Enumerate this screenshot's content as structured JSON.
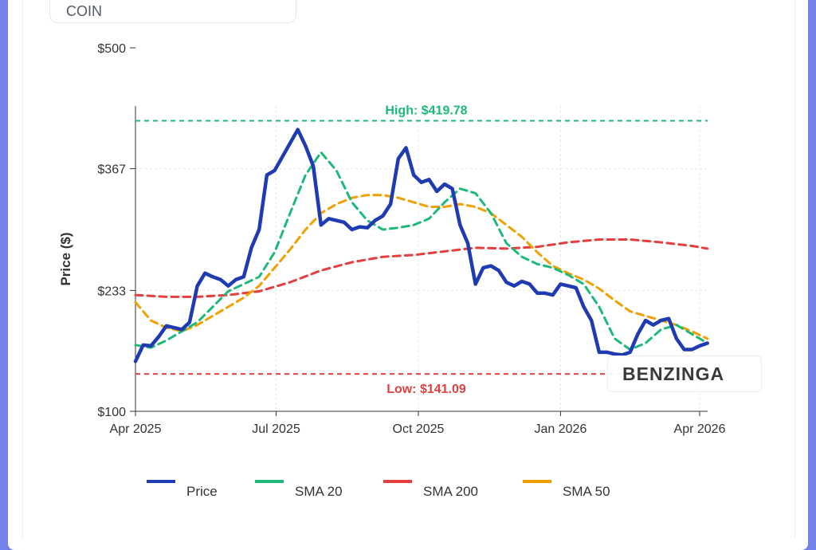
{
  "ticker": "COIN",
  "watermark": "BENZINGA",
  "colors": {
    "price": "#1f3bb3",
    "sma20": "#1db97a",
    "sma200": "#e53e3e",
    "sma50": "#f0a000"
  },
  "chart_data": {
    "type": "line",
    "xlabel": "",
    "ylabel": "Price ($)",
    "ylim": [
      100,
      500
    ],
    "y_ticks": [
      {
        "value": 100,
        "label": "$100"
      },
      {
        "value": 233,
        "label": "$233"
      },
      {
        "value": 367,
        "label": "$367"
      },
      {
        "value": 500,
        "label": "$500"
      }
    ],
    "x_ticks": [
      {
        "date": "2025-04-01",
        "label": "Apr 2025"
      },
      {
        "date": "2025-07-01",
        "label": "Jul 2025"
      },
      {
        "date": "2025-10-01",
        "label": "Oct 2025"
      },
      {
        "date": "2026-01-01",
        "label": "Jan 2026"
      },
      {
        "date": "2026-04-01",
        "label": "Apr 2026"
      }
    ],
    "x_range": [
      "2025-04-01",
      "2026-04-06"
    ],
    "grid": true,
    "legend_position": "bottom",
    "reference_lines": [
      {
        "name": "High",
        "value": 419.78,
        "label": "High: $419.78",
        "color": "#1db97a"
      },
      {
        "name": "Low",
        "value": 141.09,
        "label": "Low: $141.09",
        "color": "#e53e3e"
      }
    ],
    "series": [
      {
        "name": "Price",
        "x": [
          "2025-04-01",
          "2025-04-06",
          "2025-04-11",
          "2025-04-16",
          "2025-04-21",
          "2025-04-26",
          "2025-05-01",
          "2025-05-06",
          "2025-05-11",
          "2025-05-16",
          "2025-05-21",
          "2025-05-26",
          "2025-05-31",
          "2025-06-05",
          "2025-06-10",
          "2025-06-15",
          "2025-06-20",
          "2025-06-25",
          "2025-06-30",
          "2025-07-05",
          "2025-07-10",
          "2025-07-15",
          "2025-07-20",
          "2025-07-25",
          "2025-07-30",
          "2025-08-04",
          "2025-08-09",
          "2025-08-14",
          "2025-08-19",
          "2025-08-24",
          "2025-08-29",
          "2025-09-03",
          "2025-09-08",
          "2025-09-13",
          "2025-09-18",
          "2025-09-23",
          "2025-09-28",
          "2025-10-03",
          "2025-10-08",
          "2025-10-13",
          "2025-10-18",
          "2025-10-23",
          "2025-10-28",
          "2025-11-02",
          "2025-11-07",
          "2025-11-12",
          "2025-11-17",
          "2025-11-22",
          "2025-11-27",
          "2025-12-02",
          "2025-12-07",
          "2025-12-12",
          "2025-12-17",
          "2025-12-22",
          "2025-12-27",
          "2026-01-01",
          "2026-01-06",
          "2026-01-11",
          "2026-01-16",
          "2026-01-21",
          "2026-01-26",
          "2026-01-31",
          "2026-02-05",
          "2026-02-10",
          "2026-02-15",
          "2026-02-20",
          "2026-02-25",
          "2026-03-02",
          "2026-03-07",
          "2026-03-12",
          "2026-03-17",
          "2026-03-22",
          "2026-03-27",
          "2026-04-01",
          "2026-04-06"
        ],
        "values": [
          155,
          173,
          172,
          182,
          194,
          192,
          190,
          198,
          238,
          252,
          248,
          245,
          238,
          245,
          248,
          280,
          300,
          360,
          365,
          380,
          395,
          410,
          392,
          370,
          305,
          312,
          310,
          308,
          300,
          303,
          302,
          310,
          315,
          328,
          378,
          390,
          360,
          352,
          355,
          342,
          350,
          345,
          305,
          285,
          240,
          258,
          260,
          255,
          242,
          238,
          243,
          240,
          230,
          230,
          228,
          240,
          238,
          236,
          215,
          200,
          165,
          165,
          163,
          162,
          165,
          185,
          200,
          195,
          200,
          202,
          180,
          168,
          168,
          172,
          175
        ]
      },
      {
        "name": "SMA 20",
        "x": [
          "2025-04-01",
          "2025-04-11",
          "2025-04-21",
          "2025-05-01",
          "2025-05-11",
          "2025-05-21",
          "2025-05-31",
          "2025-06-10",
          "2025-06-20",
          "2025-06-30",
          "2025-07-10",
          "2025-07-20",
          "2025-07-30",
          "2025-08-09",
          "2025-08-19",
          "2025-08-29",
          "2025-09-08",
          "2025-09-18",
          "2025-09-28",
          "2025-10-08",
          "2025-10-18",
          "2025-10-28",
          "2025-11-07",
          "2025-11-17",
          "2025-11-27",
          "2025-12-07",
          "2025-12-17",
          "2025-12-27",
          "2026-01-06",
          "2026-01-16",
          "2026-01-26",
          "2026-02-05",
          "2026-02-15",
          "2026-02-25",
          "2026-03-07",
          "2026-03-17",
          "2026-03-27",
          "2026-04-06"
        ],
        "values": [
          173,
          170,
          178,
          188,
          198,
          215,
          232,
          240,
          248,
          275,
          318,
          360,
          385,
          365,
          330,
          310,
          300,
          302,
          305,
          312,
          330,
          345,
          340,
          318,
          285,
          270,
          262,
          258,
          250,
          240,
          215,
          180,
          168,
          175,
          190,
          195,
          185,
          175
        ]
      },
      {
        "name": "SMA 50",
        "x": [
          "2025-04-01",
          "2025-04-11",
          "2025-04-21",
          "2025-05-01",
          "2025-05-11",
          "2025-05-21",
          "2025-05-31",
          "2025-06-10",
          "2025-06-20",
          "2025-06-30",
          "2025-07-10",
          "2025-07-20",
          "2025-07-30",
          "2025-08-09",
          "2025-08-19",
          "2025-08-29",
          "2025-09-08",
          "2025-09-18",
          "2025-09-28",
          "2025-10-08",
          "2025-10-18",
          "2025-10-28",
          "2025-11-07",
          "2025-11-17",
          "2025-11-27",
          "2025-12-07",
          "2025-12-17",
          "2025-12-27",
          "2026-01-06",
          "2026-01-16",
          "2026-01-26",
          "2026-02-05",
          "2026-02-15",
          "2026-02-25",
          "2026-03-07",
          "2026-03-17",
          "2026-03-27",
          "2026-04-06"
        ],
        "values": [
          220,
          200,
          192,
          188,
          195,
          205,
          215,
          225,
          238,
          258,
          278,
          300,
          318,
          328,
          335,
          338,
          338,
          335,
          330,
          325,
          325,
          328,
          325,
          318,
          305,
          292,
          275,
          260,
          252,
          245,
          235,
          222,
          210,
          205,
          200,
          195,
          188,
          180
        ]
      },
      {
        "name": "SMA 200",
        "x": [
          "2025-04-01",
          "2025-04-21",
          "2025-05-11",
          "2025-05-31",
          "2025-06-20",
          "2025-07-10",
          "2025-07-30",
          "2025-08-19",
          "2025-09-08",
          "2025-09-28",
          "2025-10-18",
          "2025-11-07",
          "2025-11-27",
          "2025-12-17",
          "2026-01-06",
          "2026-01-26",
          "2026-02-15",
          "2026-03-07",
          "2026-03-27",
          "2026-04-06"
        ],
        "values": [
          228,
          226,
          226,
          228,
          232,
          242,
          255,
          264,
          270,
          272,
          276,
          280,
          279,
          281,
          286,
          289,
          289,
          286,
          282,
          279
        ]
      }
    ]
  },
  "legend": [
    {
      "label": "Price",
      "color": "#1f3bb3"
    },
    {
      "label": "SMA 20",
      "color": "#1db97a"
    },
    {
      "label": "SMA 200",
      "color": "#e53e3e"
    },
    {
      "label": "SMA 50",
      "color": "#f0a000"
    }
  ]
}
